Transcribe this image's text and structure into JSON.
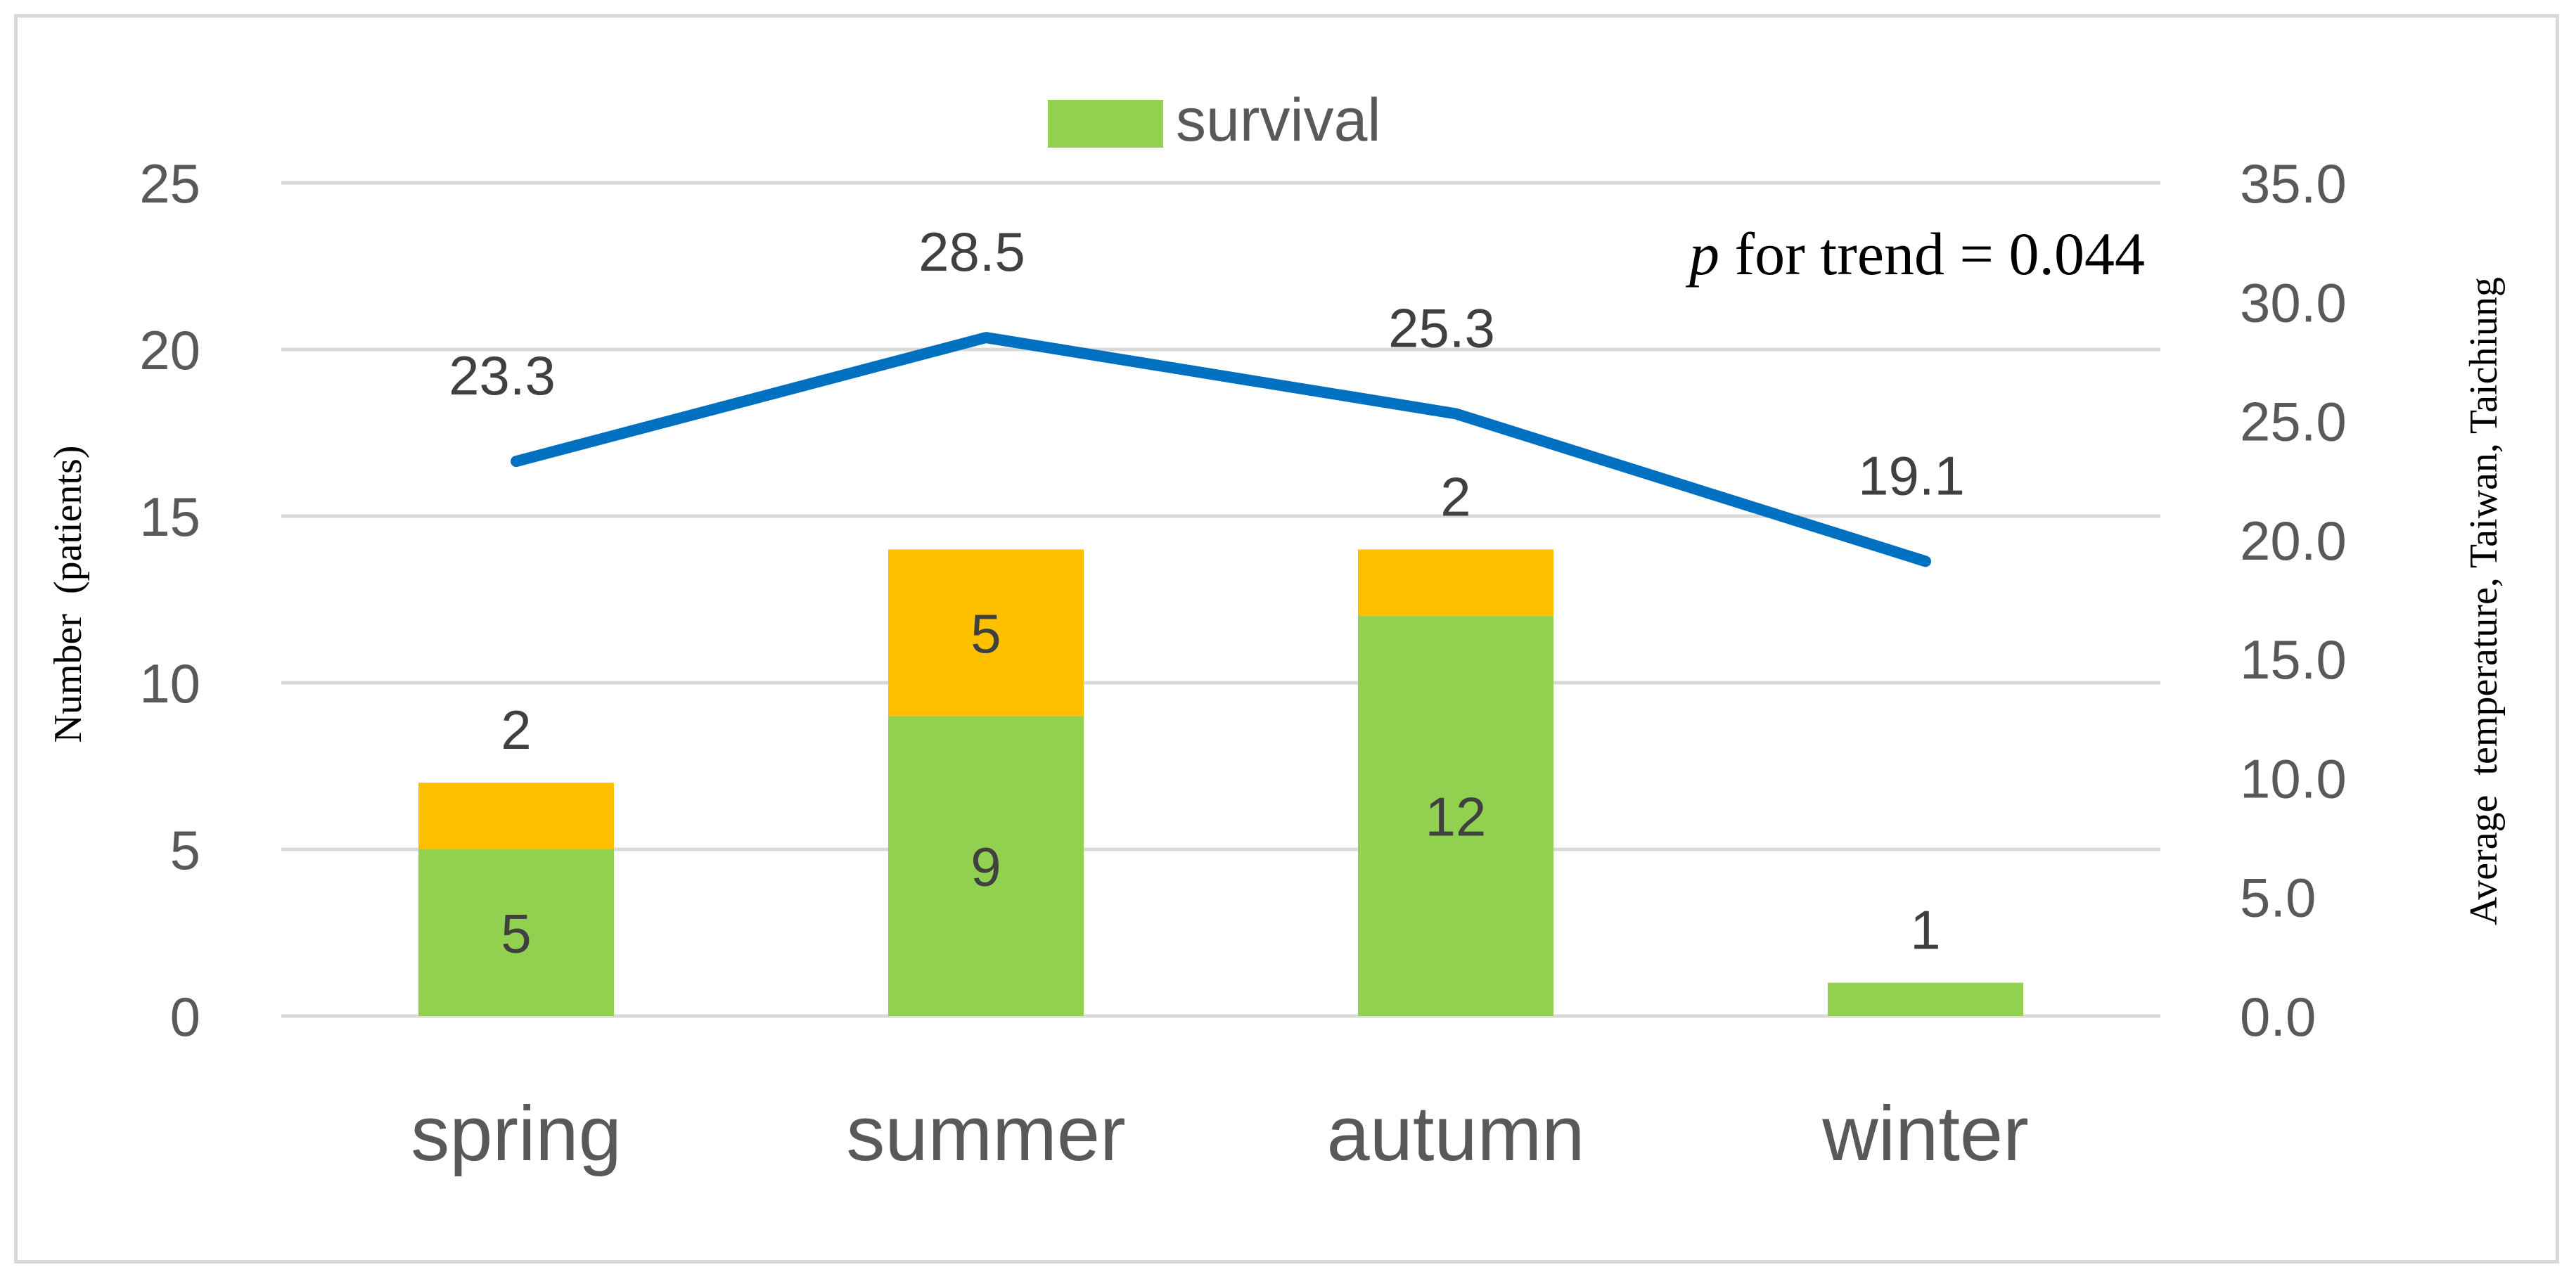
{
  "chart_data": {
    "type": "bar",
    "stacked": true,
    "categories": [
      "spring",
      "summer",
      "autumn",
      "winter"
    ],
    "series": [
      {
        "name": "survival",
        "kind": "bar",
        "values": [
          5,
          9,
          12,
          1
        ],
        "color": "#92d050"
      },
      {
        "name": "",
        "kind": "bar",
        "values": [
          2,
          5,
          2,
          0
        ],
        "color": "#ffc000"
      },
      {
        "name": "",
        "kind": "line",
        "axis": "right",
        "values": [
          23.3,
          28.5,
          25.3,
          19.1
        ],
        "color": "#0070c0"
      }
    ],
    "y_left": {
      "label": "Number  (patients)",
      "range": [
        0,
        25
      ],
      "ticks": [
        "0",
        "5",
        "10",
        "15",
        "20",
        "25"
      ]
    },
    "y_right": {
      "label": "Average  temperature, Taiwan, Taichiung",
      "range": [
        0,
        35
      ],
      "ticks": [
        "0.0",
        "5.0",
        "10.0",
        "15.0",
        "20.0",
        "25.0",
        "30.0",
        "35.0"
      ]
    },
    "line_labels": [
      "23.3",
      "28.5",
      "25.3",
      "19.1"
    ],
    "annotation": {
      "italic": "p",
      "text": " for trend = 0.044"
    },
    "legend": {
      "placement": "top-center",
      "entries": [
        "survival"
      ]
    },
    "grid": true,
    "colors": {
      "gridline": "#d9d9d9",
      "text": "#595959",
      "line": "#0070c0"
    }
  }
}
